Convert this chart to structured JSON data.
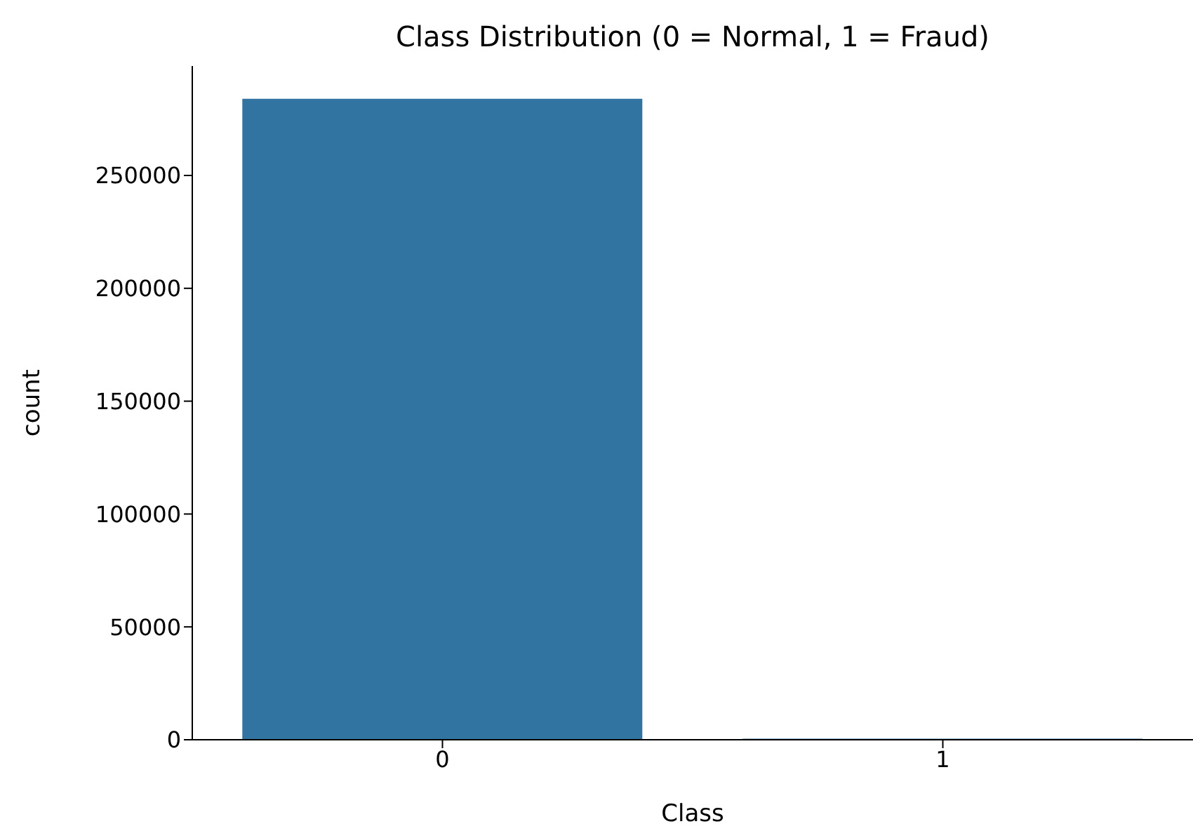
{
  "chart_data": {
    "type": "bar",
    "title": "Class Distribution (0 = Normal, 1 = Fraud)",
    "xlabel": "Class",
    "ylabel": "count",
    "categories": [
      "0",
      "1"
    ],
    "values": [
      284000,
      500
    ],
    "color": "#3274a1",
    "ylim": [
      0,
      298500
    ],
    "yticks": [
      0,
      50000,
      100000,
      150000,
      200000,
      250000
    ],
    "grid": false,
    "legend": false
  }
}
